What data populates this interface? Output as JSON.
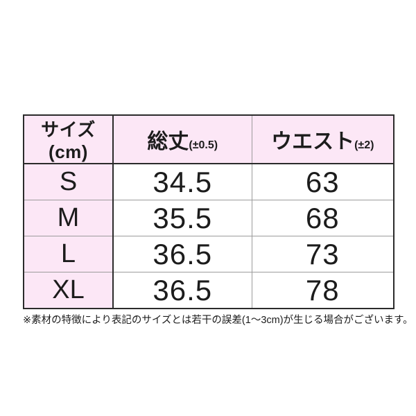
{
  "table": {
    "columns": [
      {
        "label": "サイズ(cm)",
        "sub": ""
      },
      {
        "label": "総丈",
        "sub": "(±0.5)"
      },
      {
        "label": "ウエスト",
        "sub": "(±2)"
      }
    ],
    "rows": [
      {
        "size": "S",
        "length": "34.5",
        "waist": "63"
      },
      {
        "size": "M",
        "length": "35.5",
        "waist": "68"
      },
      {
        "size": "L",
        "length": "36.5",
        "waist": "73"
      },
      {
        "size": "XL",
        "length": "36.5",
        "waist": "78"
      }
    ]
  },
  "note": "※素材の特徴により表記のサイズとは若干の誤差(1～3cm)が生じる場合がございます。",
  "colors": {
    "header_bg": "#fce7f6",
    "border_dark": "#2b2b2b",
    "border_light": "#9b9b9b"
  }
}
